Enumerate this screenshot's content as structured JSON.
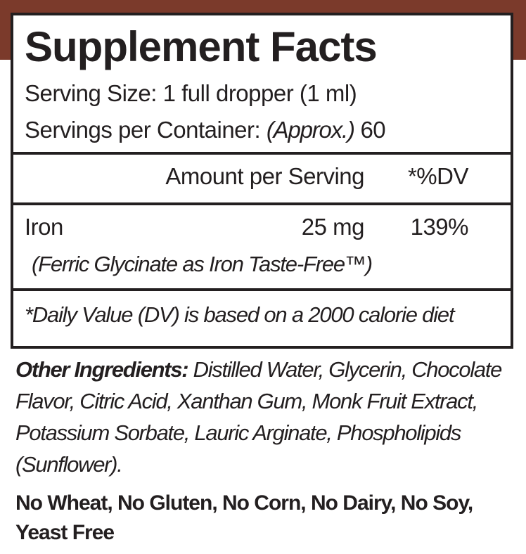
{
  "header": {
    "title": "Supplement Facts",
    "serving_size": "Serving Size: 1 full dropper (1 ml)",
    "servings_label": "Servings per Container:",
    "servings_note": "(Approx.)",
    "servings_value": "60"
  },
  "table": {
    "header": {
      "amount": "Amount per Serving",
      "dv": "*%DV"
    },
    "rows": [
      {
        "name": "Iron",
        "amount": "25 mg",
        "dv": "139%",
        "note": "(Ferric Glycinate as Iron Taste-Free™)"
      }
    ]
  },
  "footnote": "*Daily Value (DV) is based on a 2000 calorie diet",
  "ingredients": {
    "label": "Other Ingredients:",
    "text": "Distilled Water, Glycerin, Chocolate Flavor, Citric Acid, Xanthan Gum, Monk Fruit Extract,  Potassium Sorbate, Lauric Arginate, Phospholipids (Sunflower)."
  },
  "allergens": "No Wheat, No Gluten, No Corn, No Dairy, No Soy, Yeast Free"
}
